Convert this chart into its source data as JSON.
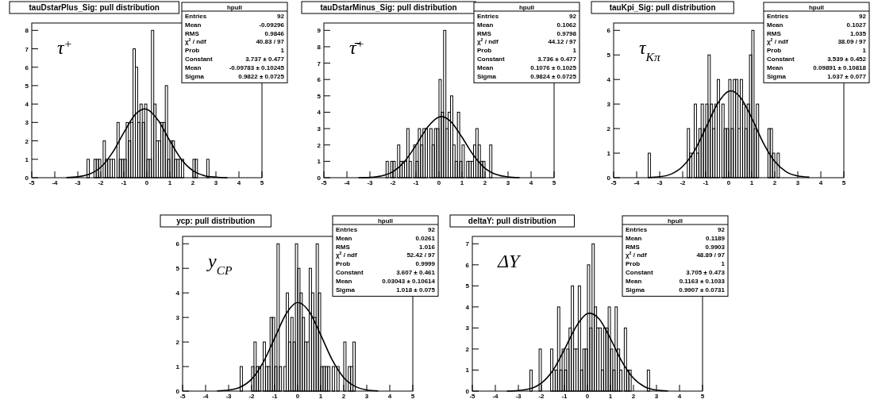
{
  "chart_data": [
    {
      "type": "histogram",
      "title": "tauDstarPlus_Sig: pull distribution",
      "xlim": [
        -5,
        5
      ],
      "xticks": [
        -5,
        -4,
        -3,
        -2,
        -1,
        0,
        1,
        2,
        3,
        4,
        5
      ],
      "ylim": [
        0,
        8.4
      ],
      "yticks": [
        0,
        1,
        2,
        3,
        4,
        5,
        6,
        7,
        8
      ],
      "bins": [
        -2.6,
        -2.5,
        -2.4,
        -2.3,
        -2.2,
        -2.1,
        -2,
        -1.9,
        -1.8,
        -1.7,
        -1.6,
        -1.5,
        -1.4,
        -1.3,
        -1.2,
        -1.1,
        -1,
        -0.9,
        -0.8,
        -0.7,
        -0.6,
        -0.5,
        -0.4,
        -0.3,
        -0.2,
        -0.1,
        0,
        0.1,
        0.2,
        0.3,
        0.4,
        0.5,
        0.6,
        0.7,
        0.8,
        0.9,
        1,
        1.1,
        1.2,
        1.3,
        1.4,
        1.5,
        1.6,
        1.7,
        1.8,
        1.9,
        2,
        2.1,
        2.2,
        2.3,
        2.4,
        2.5,
        2.6,
        2.7
      ],
      "values": [
        1,
        0,
        0,
        1,
        1,
        1,
        0,
        2,
        1,
        1,
        1,
        1,
        0,
        3,
        1,
        1,
        1,
        3,
        2,
        3,
        7,
        6,
        3,
        4,
        3,
        4,
        1,
        1,
        8,
        4,
        2,
        2,
        3,
        3,
        5,
        1,
        2,
        2,
        1,
        1,
        1,
        1,
        0,
        0,
        0,
        0,
        1,
        1,
        0,
        0,
        0,
        0,
        1
      ],
      "color": "#000000",
      "series": [
        {
          "type": "line",
          "color": "#000000",
          "x": [
            -3.5,
            -3,
            -2.5,
            -2,
            -1.5,
            -1,
            -0.5,
            -0.1,
            0,
            0.5,
            1,
            1.5,
            2,
            2.5,
            3,
            3.5
          ],
          "values": [
            0.01,
            0.05,
            0.19,
            0.57,
            1.35,
            2.45,
            3.44,
            3.74,
            3.72,
            3.1,
            2,
            0.99,
            0.38,
            0.11,
            0.03,
            0
          ]
        }
      ],
      "annotations": [
        "τ$^{+}$",
        "hpull",
        "Entries",
        "92",
        "Mean",
        "-0.09296",
        "RMS",
        "0.9846",
        "χ$^{2}$ / ndf",
        "40.83 / 97",
        "Prob",
        "1",
        "Constant",
        "3.737 ± 0.477",
        "Mean",
        "-0.09783 ± 0.10245",
        "Sigma",
        "0.9822 ± 0.0725"
      ]
    },
    {
      "type": "histogram",
      "title": "tauDstarMinus_Sig: pull distribution",
      "xlim": [
        -5,
        5
      ],
      "xticks": [
        -5,
        -4,
        -3,
        -2,
        -1,
        0,
        1,
        2,
        3,
        4,
        5
      ],
      "ylim": [
        0,
        9.45
      ],
      "yticks": [
        0,
        1,
        2,
        3,
        4,
        5,
        6,
        7,
        8,
        9
      ],
      "bins": [
        -2.3,
        -2.2,
        -2.1,
        -2,
        -1.9,
        -1.8,
        -1.7,
        -1.6,
        -1.5,
        -1.4,
        -1.3,
        -1.2,
        -1.1,
        -1,
        -0.9,
        -0.8,
        -0.7,
        -0.6,
        -0.5,
        -0.4,
        -0.3,
        -0.2,
        -0.1,
        0,
        0.1,
        0.2,
        0.3,
        0.4,
        0.5,
        0.6,
        0.7,
        0.8,
        0.9,
        1,
        1.1,
        1.2,
        1.3,
        1.4,
        1.5,
        1.6,
        1.7,
        1.8,
        1.9,
        2,
        2.1,
        2.2,
        2.3
      ],
      "values": [
        1,
        0,
        1,
        1,
        0,
        2,
        1,
        1,
        1,
        3,
        1,
        0,
        2,
        1,
        3,
        2,
        3,
        3,
        0,
        3,
        2,
        3,
        3,
        6,
        4,
        9,
        3,
        4,
        5,
        2,
        1,
        4,
        1,
        2,
        0,
        1,
        1,
        1,
        2,
        3,
        2,
        1,
        1,
        0,
        0,
        2
      ],
      "color": "#000000",
      "series": [
        {
          "type": "line",
          "color": "#000000",
          "x": [
            -3.5,
            -3,
            -2.5,
            -2,
            -1.5,
            -1,
            -0.5,
            0,
            0.1,
            0.5,
            1,
            1.5,
            2,
            2.5,
            3,
            3.5
          ],
          "values": [
            0,
            0.02,
            0.11,
            0.37,
            0.98,
            1.98,
            3.08,
            3.71,
            3.74,
            3.45,
            2.47,
            1.37,
            0.58,
            0.19,
            0.05,
            0.01
          ]
        }
      ],
      "annotations": [
        "τ̄$^{+}$",
        "hpull",
        "Entries",
        "92",
        "Mean",
        "0.1062",
        "RMS",
        "0.9798",
        "χ$^{2}$ / ndf",
        "44.12 / 97",
        "Prob",
        "1",
        "Constant",
        "3.736 ± 0.477",
        "Mean",
        "0.1076 ± 0.1025",
        "Sigma",
        "0.9824 ± 0.0725"
      ]
    },
    {
      "type": "histogram",
      "title": "tauKpi_Sig: pull distribution",
      "xlim": [
        -5,
        5
      ],
      "xticks": [
        -5,
        -4,
        -3,
        -2,
        -1,
        0,
        1,
        2,
        3,
        4,
        5
      ],
      "ylim": [
        0,
        6.3
      ],
      "yticks": [
        0,
        1,
        2,
        3,
        4,
        5,
        6
      ],
      "bins": [
        -3.5,
        -3.4,
        -3.3,
        -3.2,
        -3.1,
        -3,
        -2.9,
        -2.8,
        -2.7,
        -2.6,
        -2.5,
        -2.4,
        -2.3,
        -2.2,
        -2.1,
        -2,
        -1.9,
        -1.8,
        -1.7,
        -1.6,
        -1.5,
        -1.4,
        -1.3,
        -1.2,
        -1.1,
        -1,
        -0.9,
        -0.8,
        -0.7,
        -0.6,
        -0.5,
        -0.4,
        -0.3,
        -0.2,
        -0.1,
        0,
        0.1,
        0.2,
        0.3,
        0.4,
        0.5,
        0.6,
        0.7,
        0.8,
        0.9,
        1,
        1.1,
        1.2,
        1.3,
        1.4,
        1.5,
        1.6,
        1.7,
        1.8,
        1.9,
        2,
        2.1,
        2.2
      ],
      "values": [
        1,
        0,
        0,
        0,
        0,
        0,
        0,
        0,
        0,
        0,
        0,
        0,
        0,
        0,
        0,
        0,
        0,
        2,
        1,
        0,
        3,
        1,
        2,
        3,
        2,
        3,
        5,
        3,
        2,
        3,
        4,
        0,
        3,
        2,
        2,
        4,
        2,
        4,
        4,
        2,
        4,
        3,
        2,
        3,
        5,
        6,
        2,
        3,
        0,
        0,
        0,
        0,
        2,
        2,
        1,
        0,
        1
      ],
      "color": "#000000",
      "series": [
        {
          "type": "line",
          "color": "#000000",
          "x": [
            -3.5,
            -3,
            -2.5,
            -2,
            -1.5,
            -1,
            -0.5,
            0,
            0.1,
            0.5,
            1,
            1.5,
            2,
            2.5,
            3,
            3.5
          ],
          "values": [
            0.01,
            0.04,
            0.15,
            0.46,
            1.08,
            2.02,
            2.99,
            3.52,
            3.54,
            3.28,
            2.43,
            1.42,
            0.66,
            0.24,
            0.07,
            0.02
          ]
        }
      ],
      "annotations": [
        "τ$_{Kπ}$",
        "hpull",
        "Entries",
        "92",
        "Mean",
        "0.1027",
        "RMS",
        "1.035",
        "χ$^{2}$ / ndf",
        "38.09 / 97",
        "Prob",
        "1",
        "Constant",
        "3.539 ± 0.452",
        "Mean",
        "0.09891 ± 0.10818",
        "Sigma",
        "1.037 ± 0.077"
      ]
    },
    {
      "type": "histogram",
      "title": "ycp: pull distribution",
      "xlim": [
        -5,
        5
      ],
      "xticks": [
        -5,
        -4,
        -3,
        -2,
        -1,
        0,
        1,
        2,
        3,
        4,
        5
      ],
      "ylim": [
        0,
        6.3
      ],
      "yticks": [
        0,
        1,
        2,
        3,
        4,
        5,
        6
      ],
      "bins": [
        -2.5,
        -2.4,
        -2.3,
        -2.2,
        -2.1,
        -2,
        -1.9,
        -1.8,
        -1.7,
        -1.6,
        -1.5,
        -1.4,
        -1.3,
        -1.2,
        -1.1,
        -1,
        -0.9,
        -0.8,
        -0.7,
        -0.6,
        -0.5,
        -0.4,
        -0.3,
        -0.2,
        -0.1,
        0,
        0.1,
        0.2,
        0.3,
        0.4,
        0.5,
        0.6,
        0.7,
        0.8,
        0.9,
        1,
        1.1,
        1.2,
        1.3,
        1.4,
        1.5,
        1.6,
        1.7,
        1.8,
        1.9,
        2,
        2.1,
        2.2,
        2.3,
        2.4,
        2.5
      ],
      "values": [
        1,
        0,
        0,
        0,
        0,
        1,
        2,
        1,
        1,
        0,
        2,
        1,
        1,
        3,
        3,
        1,
        6,
        1,
        0,
        1,
        4,
        2,
        3,
        2,
        6,
        5,
        4,
        3,
        2,
        2,
        5,
        4,
        3,
        6,
        4,
        1,
        1,
        1,
        1,
        0,
        1,
        0,
        1,
        0,
        0,
        2,
        0,
        1,
        1,
        2
      ],
      "color": "#000000",
      "series": [
        {
          "type": "line",
          "color": "#000000",
          "x": [
            -3.5,
            -3,
            -2.5,
            -2,
            -1.5,
            -1,
            -0.5,
            0,
            0.5,
            1,
            1.5,
            2,
            2.5,
            3,
            3.5
          ],
          "values": [
            0.01,
            0.04,
            0.16,
            0.49,
            1.17,
            2.16,
            3.15,
            3.61,
            3.24,
            2.29,
            1.27,
            0.55,
            0.19,
            0.05,
            0.01
          ]
        }
      ],
      "annotations": [
        "y$_{CP}$",
        "hpull",
        "Entries",
        "92",
        "Mean",
        "0.0261",
        "RMS",
        "1.016",
        "χ$^{2}$ / ndf",
        "52.42 / 97",
        "Prob",
        "0.9999",
        "Constant",
        "3.607 ± 0.461",
        "Mean",
        "0.03043 ± 0.10614",
        "Sigma",
        "1.018 ± 0.075"
      ]
    },
    {
      "type": "histogram",
      "title": "deltaY: pull distribution",
      "xlim": [
        -5,
        5
      ],
      "xticks": [
        -5,
        -4,
        -3,
        -2,
        -1,
        0,
        1,
        2,
        3,
        4,
        5
      ],
      "ylim": [
        0,
        7.35
      ],
      "yticks": [
        0,
        1,
        2,
        3,
        4,
        5,
        6,
        7
      ],
      "bins": [
        -2.5,
        -2.4,
        -2.3,
        -2.2,
        -2.1,
        -2,
        -1.9,
        -1.8,
        -1.7,
        -1.6,
        -1.5,
        -1.4,
        -1.3,
        -1.2,
        -1.1,
        -1,
        -0.9,
        -0.8,
        -0.7,
        -0.6,
        -0.5,
        -0.4,
        -0.3,
        -0.2,
        -0.1,
        0,
        0.1,
        0.2,
        0.3,
        0.4,
        0.5,
        0.6,
        0.7,
        0.8,
        0.9,
        1,
        1.1,
        1.2,
        1.3,
        1.4,
        1.5,
        1.6,
        1.7,
        1.8,
        1.9,
        2,
        2.1,
        2.2,
        2.3,
        2.4,
        2.5,
        2.6,
        2.7
      ],
      "values": [
        1,
        0,
        0,
        0,
        2,
        0,
        0,
        0,
        0,
        2,
        1,
        1,
        4,
        1,
        2,
        1,
        2,
        3,
        5,
        2,
        2,
        5,
        1,
        2,
        2,
        6,
        3,
        7,
        4,
        3,
        3,
        1,
        3,
        3,
        4,
        2,
        1,
        4,
        2,
        1,
        0,
        3,
        1,
        1,
        0,
        0,
        0,
        0,
        0,
        0,
        0,
        1
      ],
      "color": "#000000",
      "series": [
        {
          "type": "line",
          "color": "#000000",
          "x": [
            -3.5,
            -3,
            -2.5,
            -2,
            -1.5,
            -1,
            -0.5,
            0,
            0.1,
            0.5,
            1,
            1.5,
            2,
            2.5,
            3,
            3.5
          ],
          "values": [
            0,
            0.03,
            0.11,
            0.38,
            0.98,
            1.97,
            3.05,
            3.68,
            3.7,
            3.44,
            2.49,
            1.4,
            0.61,
            0.2,
            0.05,
            0.01
          ]
        }
      ],
      "annotations": [
        "ΔY",
        "hpull",
        "Entries",
        "92",
        "Mean",
        "0.1189",
        "RMS",
        "0.9903",
        "χ$^{2}$ / ndf",
        "48.89 / 97",
        "Prob",
        "1",
        "Constant",
        "3.705 ± 0.473",
        "Mean",
        "0.1163 ± 0.1033",
        "Sigma",
        "0.9907 ± 0.0731"
      ]
    }
  ]
}
